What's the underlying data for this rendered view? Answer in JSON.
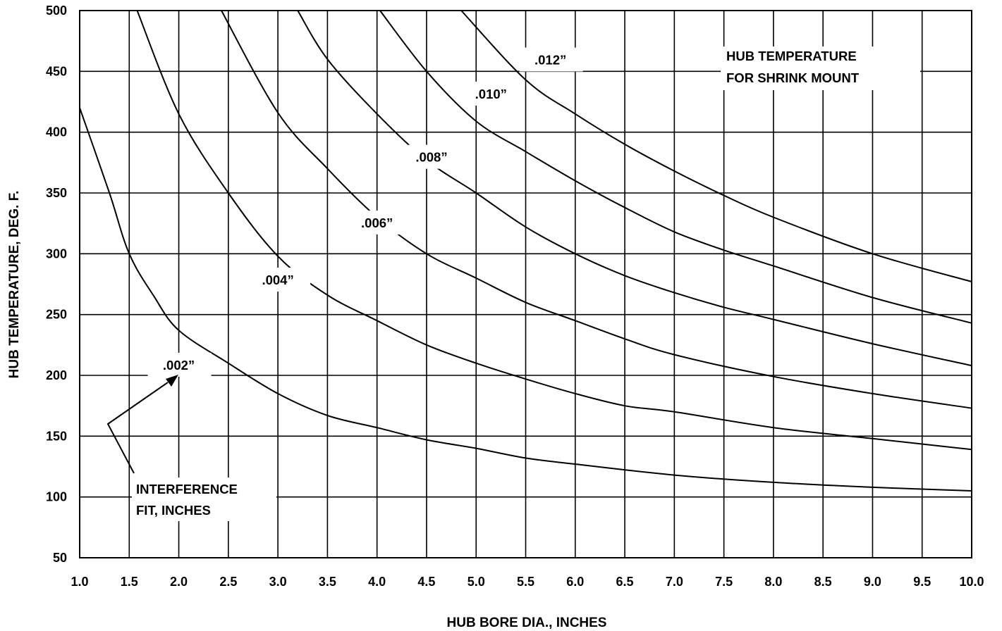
{
  "chart_data": {
    "type": "line",
    "title": "",
    "xlabel": "HUB BORE DIA., INCHES",
    "ylabel": "HUB TEMPERATURE, DEG. F.",
    "xlim": [
      1.0,
      10.0
    ],
    "ylim": [
      50,
      500
    ],
    "grid": true,
    "x_ticks": [
      "1.0",
      "1.5",
      "2.0",
      "2.5",
      "3.0",
      "3.5",
      "4.0",
      "4.5",
      "5.0",
      "5.5",
      "6.0",
      "6.5",
      "7.0",
      "7.5",
      "8.0",
      "8.5",
      "9.0",
      "9.5",
      "10.0"
    ],
    "y_ticks": [
      "50",
      "100",
      "150",
      "200",
      "250",
      "300",
      "350",
      "400",
      "450",
      "500"
    ],
    "annotations": {
      "header_line1": "HUB TEMPERATURE",
      "header_line2": "FOR SHRINK MOUNT",
      "pointer_line1": "INTERFERENCE",
      "pointer_line2": "FIT, INCHES"
    },
    "series": [
      {
        "name": ".002”",
        "x": [
          1.0,
          1.3,
          1.5,
          1.75,
          2.0,
          2.5,
          3.0,
          3.5,
          4.0,
          4.5,
          5.0,
          5.5,
          6.0,
          7.0,
          8.0,
          9.0,
          10.0
        ],
        "y": [
          420,
          350,
          300,
          265,
          237,
          210,
          185,
          167,
          157,
          147,
          140,
          132,
          127,
          118,
          112,
          108,
          105
        ]
      },
      {
        "name": ".004”",
        "x": [
          1.58,
          2.0,
          2.5,
          3.0,
          3.5,
          4.0,
          4.5,
          5.0,
          5.5,
          6.0,
          6.5,
          7.0,
          8.0,
          9.0,
          10.0
        ],
        "y": [
          500,
          415,
          350,
          298,
          266,
          245,
          225,
          210,
          197,
          185,
          175,
          170,
          157,
          148,
          139
        ]
      },
      {
        "name": ".006”",
        "x": [
          2.43,
          3.0,
          3.5,
          4.0,
          4.5,
          5.0,
          5.5,
          6.0,
          6.5,
          7.0,
          8.0,
          9.0,
          10.0
        ],
        "y": [
          500,
          416,
          370,
          330,
          300,
          280,
          260,
          245,
          230,
          217,
          199,
          185,
          173
        ]
      },
      {
        "name": ".008”",
        "x": [
          3.2,
          3.5,
          4.0,
          4.5,
          5.0,
          5.5,
          6.0,
          6.5,
          7.0,
          7.5,
          8.0,
          9.0,
          10.0
        ],
        "y": [
          500,
          460,
          415,
          377,
          350,
          322,
          300,
          282,
          268,
          256,
          246,
          226,
          208
        ]
      },
      {
        "name": ".010”",
        "x": [
          4.03,
          4.5,
          5.0,
          5.5,
          6.0,
          6.5,
          7.0,
          7.5,
          8.0,
          9.0,
          10.0
        ],
        "y": [
          500,
          450,
          409,
          384,
          360,
          338,
          318,
          303,
          290,
          264,
          243
        ]
      },
      {
        "name": ".012”",
        "x": [
          4.85,
          5.5,
          6.0,
          6.5,
          7.0,
          7.5,
          8.0,
          9.0,
          10.0
        ],
        "y": [
          500,
          443,
          415,
          390,
          368,
          348,
          330,
          300,
          277
        ]
      }
    ]
  }
}
